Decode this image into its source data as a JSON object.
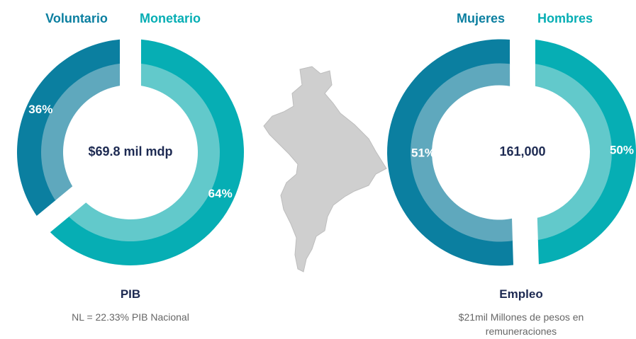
{
  "chart_data": [
    {
      "type": "donut",
      "series": [
        {
          "name": "Voluntario",
          "color": "#0b7fa0",
          "light_color": "#5fa8bd",
          "values": [
            36
          ],
          "value_labels": [
            "36%"
          ]
        },
        {
          "name": "Monetario",
          "color": "#06aeb4",
          "light_color": "#62c9cb",
          "values": [
            64
          ],
          "value_labels": [
            "64%"
          ]
        }
      ],
      "center_text": "$69.8 mil mdp",
      "title": "PIB",
      "subtitle": "NL = 22.33% PIB Nacional"
    },
    {
      "type": "donut",
      "series": [
        {
          "name": "Mujeres",
          "color": "#0b7fa0",
          "light_color": "#5fa8bd",
          "values": [
            51
          ],
          "value_labels": [
            "51%"
          ]
        },
        {
          "name": "Hombres",
          "color": "#06aeb4",
          "light_color": "#62c9cb",
          "values": [
            50
          ],
          "value_labels": [
            "50%"
          ]
        }
      ],
      "center_text": "161,000",
      "title": "Empleo",
      "subtitle": "$21mil Millones de pesos en remuneraciones"
    }
  ]
}
